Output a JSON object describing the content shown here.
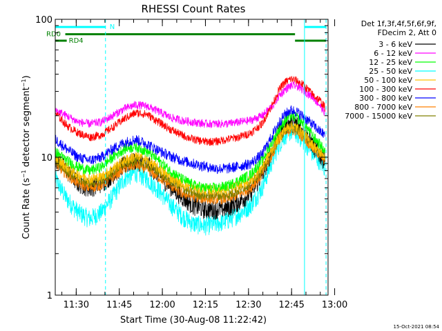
{
  "chart_data": {
    "type": "line",
    "title": "RHESSI Count Rates",
    "xlabel": "Start Time (30-Aug-08 11:22:42)",
    "ylabel": "Count Rate (s⁻¹ detector segment⁻¹)",
    "ylabel_main": "Count Rate (s",
    "ylabel_sup1": "−1",
    "ylabel_mid": " detector segment",
    "ylabel_sup2": "−1",
    "ylabel_end": ")",
    "y_scale": "log",
    "ylim": [
      1,
      100
    ],
    "y_ticks": [
      {
        "value": 1,
        "label": "1"
      },
      {
        "value": 10,
        "label": "10"
      },
      {
        "value": 100,
        "label": "100"
      }
    ],
    "xlim_minutes": [
      0,
      95
    ],
    "x_ticks": [
      {
        "label": "11:30",
        "t": 7.3
      },
      {
        "label": "11:45",
        "t": 22.3
      },
      {
        "label": "12:00",
        "t": 37.3
      },
      {
        "label": "12:15",
        "t": 52.3
      },
      {
        "label": "12:30",
        "t": 67.3
      },
      {
        "label": "12:45",
        "t": 82.3
      },
      {
        "label": "13:00",
        "t": 97.3
      }
    ],
    "legend_header": [
      "Det 1f,3f,4f,5f,6f,9f,",
      "FDecim 2, Att 0"
    ],
    "legend_position": "outside-right",
    "time_minutes": [
      0,
      4,
      8,
      12,
      16,
      20,
      24,
      28,
      32,
      36,
      40,
      44,
      48,
      52,
      56,
      60,
      64,
      68,
      72,
      76,
      78,
      80,
      82,
      84,
      86,
      88,
      90,
      92,
      94
    ],
    "series": [
      {
        "name": "3 - 6 keV",
        "color": "#000000",
        "values": [
          10,
          8,
          6.5,
          6,
          6.5,
          7.5,
          8.8,
          9.5,
          9,
          7.5,
          6.2,
          5.2,
          4.5,
          4.2,
          4.2,
          4.3,
          4.8,
          5.5,
          7.5,
          12,
          15,
          17,
          18,
          17.5,
          16,
          14,
          12,
          10.5,
          9.5
        ]
      },
      {
        "name": "6 - 12 keV",
        "color": "#ff00ff",
        "values": [
          22,
          20,
          18,
          17.5,
          18,
          20,
          22.5,
          24,
          23.5,
          21.5,
          19.5,
          18.5,
          18,
          17.5,
          17.5,
          17.5,
          18,
          18.5,
          20,
          24,
          28,
          31,
          33,
          33,
          31,
          29,
          27,
          24,
          21
        ]
      },
      {
        "name": "12 - 25 keV",
        "color": "#00ff00",
        "values": [
          11,
          9.5,
          8.5,
          8,
          8.5,
          10,
          11.5,
          12,
          11,
          9.5,
          8,
          7,
          6.3,
          6,
          6,
          6.2,
          6.8,
          7.5,
          9.5,
          13.5,
          16,
          18.5,
          20,
          19.5,
          18,
          16,
          14,
          12.5,
          11
        ]
      },
      {
        "name": "25 - 50 keV",
        "color": "#00ffff",
        "values": [
          7,
          5,
          4,
          3.6,
          4,
          5.2,
          7,
          7.8,
          7,
          5.8,
          4.6,
          3.8,
          3.3,
          3.2,
          3.3,
          3.5,
          3.9,
          4.5,
          6,
          10,
          12.5,
          14.5,
          15.5,
          15,
          13.5,
          12,
          10.5,
          9.5,
          8.3
        ]
      },
      {
        "name": "50 - 100 keV",
        "color": "#ffc000",
        "values": [
          10,
          8.5,
          7.5,
          7,
          7.2,
          8.3,
          9.5,
          10.2,
          9.5,
          8.3,
          7.2,
          6.5,
          6,
          5.8,
          5.8,
          5.8,
          6.3,
          6.8,
          8.5,
          12,
          14,
          16,
          16.8,
          16.5,
          15,
          13.5,
          12,
          11,
          10
        ]
      },
      {
        "name": "100 - 300 keV",
        "color": "#ff0000",
        "values": [
          21,
          17,
          15,
          14,
          14.5,
          16.5,
          19,
          21,
          20.5,
          18,
          16,
          14.5,
          13.5,
          13,
          13,
          13.5,
          14,
          15,
          17.5,
          25,
          31,
          35,
          37,
          36,
          34,
          31,
          28,
          26,
          23
        ]
      },
      {
        "name": "300 - 800 keV",
        "color": "#0000ff",
        "values": [
          13.5,
          11.5,
          10,
          9.5,
          10,
          11.5,
          12.8,
          13.5,
          12.5,
          11.2,
          10.2,
          9.5,
          9,
          8.6,
          8.3,
          8.3,
          8.6,
          9,
          10.5,
          15,
          18,
          20.5,
          22,
          21.5,
          20,
          18.5,
          17,
          15.5,
          14.5
        ]
      },
      {
        "name": "800 - 7000 keV",
        "color": "#ff8000",
        "values": [
          9,
          7.5,
          6.5,
          6,
          6.3,
          7.2,
          8.3,
          8.8,
          8.2,
          7.2,
          6.3,
          5.5,
          5.2,
          5,
          5,
          5,
          5.4,
          6,
          7.5,
          11,
          13.5,
          15,
          15.8,
          15.5,
          14.2,
          12.8,
          11.5,
          10.5,
          9.5
        ]
      },
      {
        "name": "7000 - 15000 keV",
        "color": "#808000",
        "values": [
          9.5,
          8,
          7,
          6.5,
          6.8,
          7.8,
          9,
          9.5,
          8.8,
          7.8,
          6.8,
          6,
          5.5,
          5.3,
          5.3,
          5.3,
          5.8,
          6.5,
          8,
          11.5,
          14,
          15.8,
          16.5,
          16.2,
          15,
          13.5,
          12,
          11,
          10
        ]
      }
    ],
    "attenuator_bars": [
      {
        "label": "N",
        "color": "#00ffff",
        "value": 88,
        "segments": [
          [
            0,
            17.5
          ],
          [
            86.8,
            94.3
          ]
        ]
      },
      {
        "label": "RD0",
        "color": "#008000",
        "value": 78,
        "segments": [
          [
            3.5,
            83.5
          ]
        ]
      },
      {
        "label": "RD4",
        "color": "#008000",
        "value": 70,
        "segments": [
          [
            0,
            4
          ],
          [
            83.5,
            94.3
          ]
        ]
      }
    ],
    "vertical_markers": [
      {
        "t": 0,
        "style": "solid",
        "color": "#00ffff"
      },
      {
        "t": 17.5,
        "style": "dashed",
        "color": "#00ffff"
      },
      {
        "t": 86.8,
        "style": "solid",
        "color": "#00ffff"
      },
      {
        "t": 94.3,
        "style": "dashed",
        "color": "#00ffff"
      }
    ]
  },
  "timestamp": "15-Oct-2021 08:54"
}
